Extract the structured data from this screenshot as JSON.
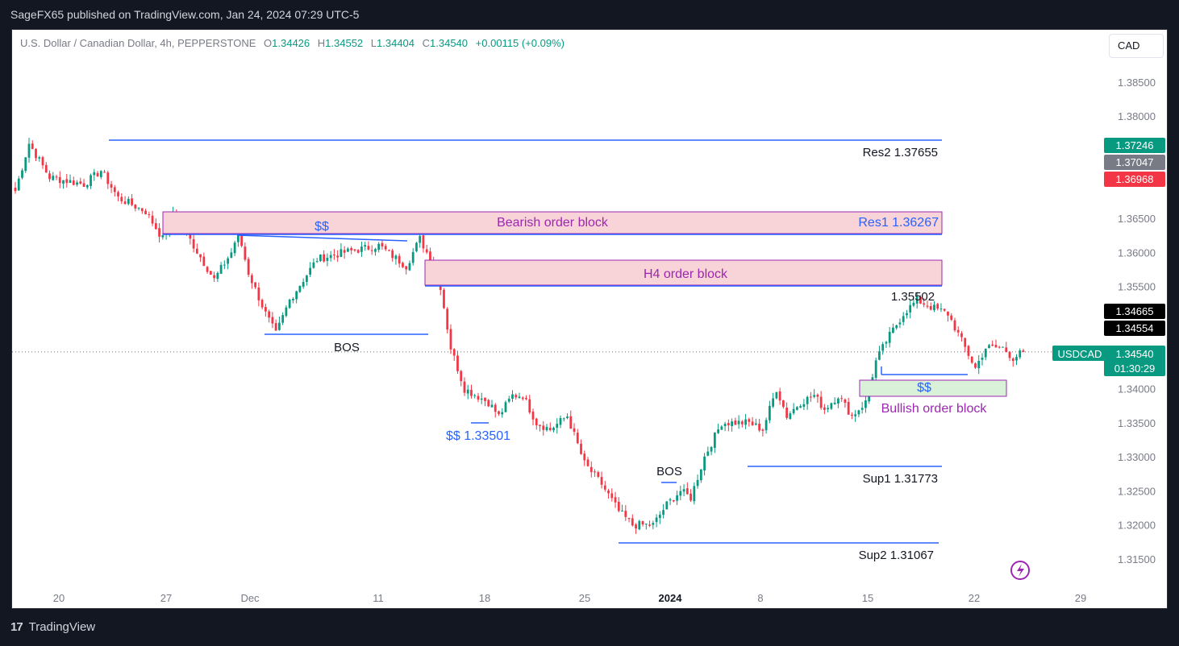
{
  "header": {
    "publisher": "SageFX65 published on TradingView.com, Jan 24, 2024 07:29 UTC-5"
  },
  "legend": {
    "symbol": "U.S. Dollar / Canadian Dollar, 4h, PEPPERSTONE",
    "o_label": "O",
    "o": "1.34426",
    "h_label": "H",
    "h": "1.34552",
    "l_label": "L",
    "l": "1.34404",
    "c_label": "C",
    "c": "1.34540",
    "change": "+0.00115 (+0.09%)"
  },
  "currency_button": "CAD",
  "footer": {
    "logo": "17",
    "brand": "TradingView"
  },
  "colors": {
    "up": "#089981",
    "down": "#f23645",
    "line": "#2962ff",
    "box_border": "#9c27b0",
    "bear_fill": "#f8d3d8",
    "bull_fill": "#d9f0d9",
    "label_purple": "#9c27b0",
    "label_blue": "#2962ff"
  },
  "chart_data": {
    "type": "candlestick",
    "symbol": "USDCAD",
    "timeframe": "4h",
    "y_ticks": [
      "1.38500",
      "1.38000",
      "1.36500",
      "1.36000",
      "1.35500",
      "1.34000",
      "1.33500",
      "1.33000",
      "1.32500",
      "1.32000",
      "1.31500"
    ],
    "x_ticks": [
      "20",
      "27",
      "Dec",
      "11",
      "18",
      "25",
      "2024",
      "8",
      "15",
      "22",
      "29"
    ],
    "price_path": [
      [
        0,
        1.369
      ],
      [
        4,
        1.376
      ],
      [
        10,
        1.371
      ],
      [
        20,
        1.37
      ],
      [
        25,
        1.372
      ],
      [
        30,
        1.368
      ],
      [
        38,
        1.366
      ],
      [
        43,
        1.362
      ],
      [
        46,
        1.366
      ],
      [
        52,
        1.361
      ],
      [
        58,
        1.356
      ],
      [
        63,
        1.36
      ],
      [
        65,
        1.363
      ],
      [
        68,
        1.357
      ],
      [
        73,
        1.351
      ],
      [
        76,
        1.348
      ],
      [
        80,
        1.353
      ],
      [
        88,
        1.359
      ],
      [
        96,
        1.36
      ],
      [
        106,
        1.361
      ],
      [
        114,
        1.358
      ],
      [
        118,
        1.362
      ],
      [
        121,
        1.359
      ],
      [
        124,
        1.355
      ],
      [
        127,
        1.346
      ],
      [
        131,
        1.34
      ],
      [
        138,
        1.338
      ],
      [
        141,
        1.336
      ],
      [
        145,
        1.339
      ],
      [
        148,
        1.339
      ],
      [
        152,
        1.335
      ],
      [
        156,
        1.334
      ],
      [
        161,
        1.336
      ],
      [
        166,
        1.329
      ],
      [
        171,
        1.326
      ],
      [
        176,
        1.322
      ],
      [
        180,
        1.32
      ],
      [
        186,
        1.32
      ],
      [
        190,
        1.323
      ],
      [
        194,
        1.325
      ],
      [
        197,
        1.324
      ],
      [
        201,
        1.33
      ],
      [
        206,
        1.335
      ],
      [
        214,
        1.335
      ],
      [
        218,
        1.334
      ],
      [
        222,
        1.34
      ],
      [
        225,
        1.336
      ],
      [
        229,
        1.338
      ],
      [
        233,
        1.339
      ],
      [
        236,
        1.337
      ],
      [
        240,
        1.339
      ],
      [
        244,
        1.336
      ],
      [
        248,
        1.338
      ],
      [
        251,
        1.344
      ],
      [
        254,
        1.347
      ],
      [
        259,
        1.351
      ],
      [
        263,
        1.353
      ],
      [
        267,
        1.352
      ],
      [
        272,
        1.351
      ],
      [
        277,
        1.346
      ],
      [
        280,
        1.343
      ],
      [
        283,
        1.346
      ],
      [
        288,
        1.346
      ],
      [
        291,
        1.3445
      ],
      [
        294,
        1.3454
      ]
    ],
    "annotations": {
      "res2": "Res2  1.37655",
      "res1": "Res1 1.36267",
      "sup1": "Sup1 1.31773",
      "sup2": "Sup2 1.31067",
      "bearish_ob": "Bearish order block",
      "h4_ob": "H4 order block",
      "bullish_ob": "Bullish order block",
      "liq_top": "$$",
      "liq_low": "$$ 1.33501",
      "liq_right": "$$",
      "bos_left": "BOS",
      "bos_mid": "BOS",
      "high_label": "1.35502"
    },
    "price_tags": [
      {
        "text": "1.37246",
        "bg": "#089981",
        "fg": "#ffffff"
      },
      {
        "text": "1.37047",
        "bg": "#787b86",
        "fg": "#ffffff"
      },
      {
        "text": "1.36968",
        "bg": "#f23645",
        "fg": "#ffffff"
      },
      {
        "text": "1.34665",
        "bg": "#000000",
        "fg": "#ffffff"
      },
      {
        "text": "1.34554",
        "bg": "#000000",
        "fg": "#ffffff"
      }
    ],
    "last_price": {
      "symbol": "USDCAD",
      "price": "1.34540",
      "countdown": "01:30:29",
      "bg": "#089981"
    }
  }
}
